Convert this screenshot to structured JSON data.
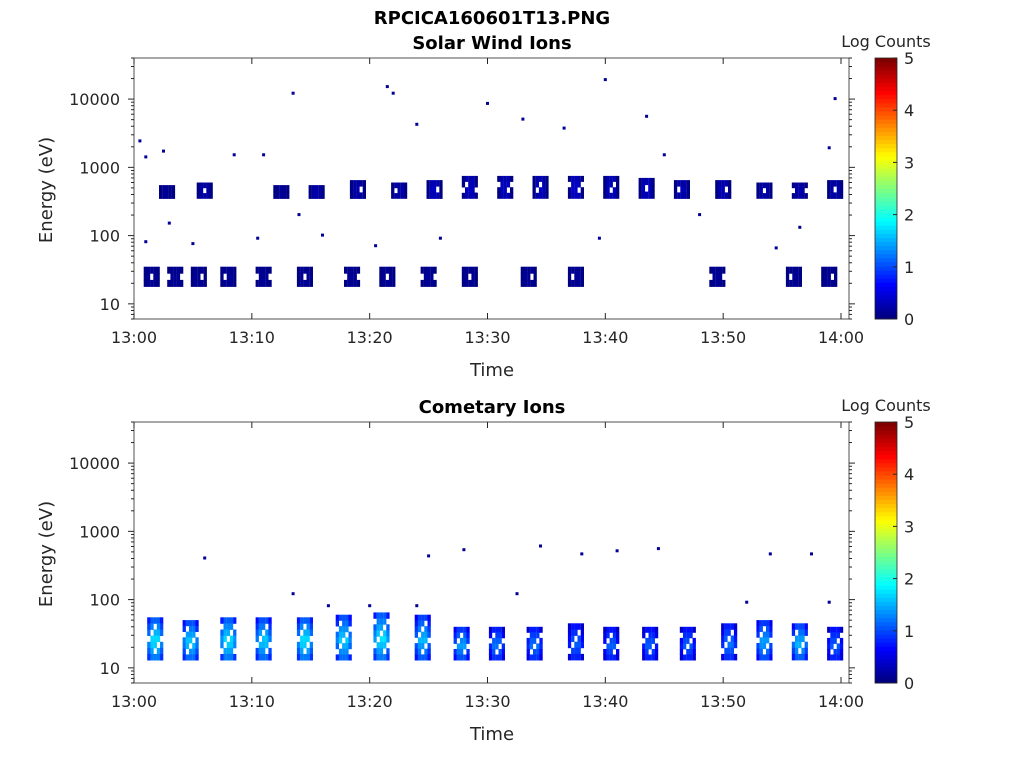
{
  "figure": {
    "title": "RPCICA160601T13.PNG"
  },
  "colors": {
    "axes": "#262626",
    "colormap": "jet"
  },
  "chart_data": [
    {
      "type": "heatmap",
      "title": "Solar Wind Ions",
      "xlabel": "Time",
      "ylabel": "Energy (eV)",
      "x_ticks": [
        "13:00",
        "13:10",
        "13:20",
        "13:30",
        "13:40",
        "13:50",
        "14:00"
      ],
      "x_range": [
        "13:00",
        "14:00"
      ],
      "y_scale": "log",
      "y_ticks": [
        "10",
        "100",
        "1000",
        "10000"
      ],
      "y_range": [
        6,
        40000
      ],
      "colorbar": {
        "label": "Log Counts",
        "ticks": [
          "0",
          "1",
          "2",
          "3",
          "4",
          "5"
        ],
        "range": [
          0,
          5
        ]
      },
      "bursts": [
        {
          "t": 1.5,
          "e_lo": 18,
          "e_hi": 35,
          "c": 0.1
        },
        {
          "t": 2.8,
          "e_lo": 350,
          "e_hi": 550,
          "c": 0.1
        },
        {
          "t": 3.5,
          "e_lo": 18,
          "e_hi": 35,
          "c": 0.1
        },
        {
          "t": 5.5,
          "e_lo": 18,
          "e_hi": 35,
          "c": 0.1
        },
        {
          "t": 6.0,
          "e_lo": 350,
          "e_hi": 600,
          "c": 0.2
        },
        {
          "t": 8.0,
          "e_lo": 18,
          "e_hi": 35,
          "c": 0.1
        },
        {
          "t": 11.0,
          "e_lo": 18,
          "e_hi": 35,
          "c": 0.1
        },
        {
          "t": 12.5,
          "e_lo": 350,
          "e_hi": 550,
          "c": 0.1
        },
        {
          "t": 14.5,
          "e_lo": 18,
          "e_hi": 35,
          "c": 0.1
        },
        {
          "t": 15.5,
          "e_lo": 350,
          "e_hi": 550,
          "c": 0.2
        },
        {
          "t": 18.5,
          "e_lo": 18,
          "e_hi": 35,
          "c": 0.1
        },
        {
          "t": 19.0,
          "e_lo": 350,
          "e_hi": 650,
          "c": 0.2
        },
        {
          "t": 21.5,
          "e_lo": 18,
          "e_hi": 35,
          "c": 0.1
        },
        {
          "t": 22.5,
          "e_lo": 350,
          "e_hi": 600,
          "c": 0.2
        },
        {
          "t": 25.0,
          "e_lo": 18,
          "e_hi": 35,
          "c": 0.1
        },
        {
          "t": 25.5,
          "e_lo": 350,
          "e_hi": 650,
          "c": 0.3
        },
        {
          "t": 28.5,
          "e_lo": 18,
          "e_hi": 35,
          "c": 0.1
        },
        {
          "t": 28.5,
          "e_lo": 350,
          "e_hi": 750,
          "c": 0.3
        },
        {
          "t": 31.5,
          "e_lo": 350,
          "e_hi": 750,
          "c": 0.3
        },
        {
          "t": 33.5,
          "e_lo": 18,
          "e_hi": 35,
          "c": 0.1
        },
        {
          "t": 34.5,
          "e_lo": 350,
          "e_hi": 750,
          "c": 0.3
        },
        {
          "t": 37.5,
          "e_lo": 18,
          "e_hi": 35,
          "c": 0.1
        },
        {
          "t": 37.5,
          "e_lo": 350,
          "e_hi": 750,
          "c": 0.35
        },
        {
          "t": 40.5,
          "e_lo": 350,
          "e_hi": 750,
          "c": 0.3
        },
        {
          "t": 43.5,
          "e_lo": 350,
          "e_hi": 700,
          "c": 0.3
        },
        {
          "t": 46.5,
          "e_lo": 350,
          "e_hi": 650,
          "c": 0.25
        },
        {
          "t": 49.5,
          "e_lo": 18,
          "e_hi": 35,
          "c": 0.1
        },
        {
          "t": 50.0,
          "e_lo": 350,
          "e_hi": 650,
          "c": 0.25
        },
        {
          "t": 53.5,
          "e_lo": 350,
          "e_hi": 600,
          "c": 0.2
        },
        {
          "t": 56.0,
          "e_lo": 18,
          "e_hi": 35,
          "c": 0.1
        },
        {
          "t": 56.5,
          "e_lo": 350,
          "e_hi": 600,
          "c": 0.2
        },
        {
          "t": 59.0,
          "e_lo": 18,
          "e_hi": 35,
          "c": 0.1
        },
        {
          "t": 59.5,
          "e_lo": 350,
          "e_hi": 650,
          "c": 0.2
        }
      ],
      "speckles": [
        {
          "t": 0.5,
          "e": 2400
        },
        {
          "t": 1.0,
          "e": 1400
        },
        {
          "t": 2.5,
          "e": 1700
        },
        {
          "t": 13.5,
          "e": 12000
        },
        {
          "t": 21.5,
          "e": 15000
        },
        {
          "t": 22.0,
          "e": 12000
        },
        {
          "t": 30.0,
          "e": 8500
        },
        {
          "t": 33.0,
          "e": 5000
        },
        {
          "t": 36.5,
          "e": 3700
        },
        {
          "t": 40.0,
          "e": 19000
        },
        {
          "t": 43.5,
          "e": 5500
        },
        {
          "t": 59.5,
          "e": 10000
        },
        {
          "t": 59.0,
          "e": 1900
        },
        {
          "t": 8.5,
          "e": 1500
        },
        {
          "t": 11.0,
          "e": 1500
        },
        {
          "t": 3.0,
          "e": 150
        },
        {
          "t": 5.0,
          "e": 75
        },
        {
          "t": 10.5,
          "e": 90
        },
        {
          "t": 16.0,
          "e": 100
        },
        {
          "t": 20.5,
          "e": 70
        },
        {
          "t": 26.0,
          "e": 90
        },
        {
          "t": 39.5,
          "e": 90
        },
        {
          "t": 54.5,
          "e": 65
        },
        {
          "t": 56.5,
          "e": 130
        },
        {
          "t": 14.0,
          "e": 200
        },
        {
          "t": 45.0,
          "e": 1500
        },
        {
          "t": 48.0,
          "e": 200
        },
        {
          "t": 24.0,
          "e": 4200
        },
        {
          "t": 29.0,
          "e": 400
        },
        {
          "t": 1.0,
          "e": 80
        }
      ]
    },
    {
      "type": "heatmap",
      "title": "Cometary Ions",
      "xlabel": "Time",
      "ylabel": "Energy (eV)",
      "x_ticks": [
        "13:00",
        "13:10",
        "13:20",
        "13:30",
        "13:40",
        "13:50",
        "14:00"
      ],
      "x_range": [
        "13:00",
        "14:00"
      ],
      "y_scale": "log",
      "y_ticks": [
        "10",
        "100",
        "1000",
        "10000"
      ],
      "y_range": [
        6,
        40000
      ],
      "colorbar": {
        "label": "Log Counts",
        "ticks": [
          "0",
          "1",
          "2",
          "3",
          "4",
          "5"
        ],
        "range": [
          0,
          5
        ]
      },
      "bursts": [
        {
          "t": 1.8,
          "e_lo": 13,
          "e_hi": 55,
          "c": 1.6
        },
        {
          "t": 4.8,
          "e_lo": 13,
          "e_hi": 50,
          "c": 1.5
        },
        {
          "t": 8.0,
          "e_lo": 13,
          "e_hi": 55,
          "c": 1.6
        },
        {
          "t": 11.0,
          "e_lo": 13,
          "e_hi": 55,
          "c": 1.5
        },
        {
          "t": 14.5,
          "e_lo": 13,
          "e_hi": 55,
          "c": 1.6
        },
        {
          "t": 17.8,
          "e_lo": 13,
          "e_hi": 60,
          "c": 1.5
        },
        {
          "t": 21.0,
          "e_lo": 13,
          "e_hi": 65,
          "c": 1.6
        },
        {
          "t": 24.5,
          "e_lo": 13,
          "e_hi": 60,
          "c": 1.4
        },
        {
          "t": 27.8,
          "e_lo": 13,
          "e_hi": 40,
          "c": 1.3
        },
        {
          "t": 30.8,
          "e_lo": 13,
          "e_hi": 40,
          "c": 1.1
        },
        {
          "t": 34.0,
          "e_lo": 13,
          "e_hi": 40,
          "c": 1.1
        },
        {
          "t": 37.5,
          "e_lo": 13,
          "e_hi": 45,
          "c": 1.0
        },
        {
          "t": 40.5,
          "e_lo": 13,
          "e_hi": 40,
          "c": 1.0
        },
        {
          "t": 43.8,
          "e_lo": 13,
          "e_hi": 40,
          "c": 1.0
        },
        {
          "t": 47.0,
          "e_lo": 13,
          "e_hi": 40,
          "c": 1.0
        },
        {
          "t": 50.5,
          "e_lo": 13,
          "e_hi": 45,
          "c": 1.1
        },
        {
          "t": 53.5,
          "e_lo": 13,
          "e_hi": 50,
          "c": 1.3
        },
        {
          "t": 56.5,
          "e_lo": 13,
          "e_hi": 45,
          "c": 1.4
        },
        {
          "t": 59.5,
          "e_lo": 13,
          "e_hi": 40,
          "c": 1.0
        }
      ],
      "speckles": [
        {
          "t": 6.0,
          "e": 400
        },
        {
          "t": 13.5,
          "e": 120
        },
        {
          "t": 25.0,
          "e": 430
        },
        {
          "t": 28.0,
          "e": 530
        },
        {
          "t": 32.5,
          "e": 120
        },
        {
          "t": 34.5,
          "e": 600
        },
        {
          "t": 38.0,
          "e": 460
        },
        {
          "t": 41.0,
          "e": 510
        },
        {
          "t": 44.5,
          "e": 550
        },
        {
          "t": 54.0,
          "e": 460
        },
        {
          "t": 57.5,
          "e": 460
        },
        {
          "t": 16.5,
          "e": 80
        },
        {
          "t": 20.0,
          "e": 80
        },
        {
          "t": 24.0,
          "e": 80
        },
        {
          "t": 52.0,
          "e": 90
        },
        {
          "t": 59.0,
          "e": 90
        }
      ]
    }
  ]
}
